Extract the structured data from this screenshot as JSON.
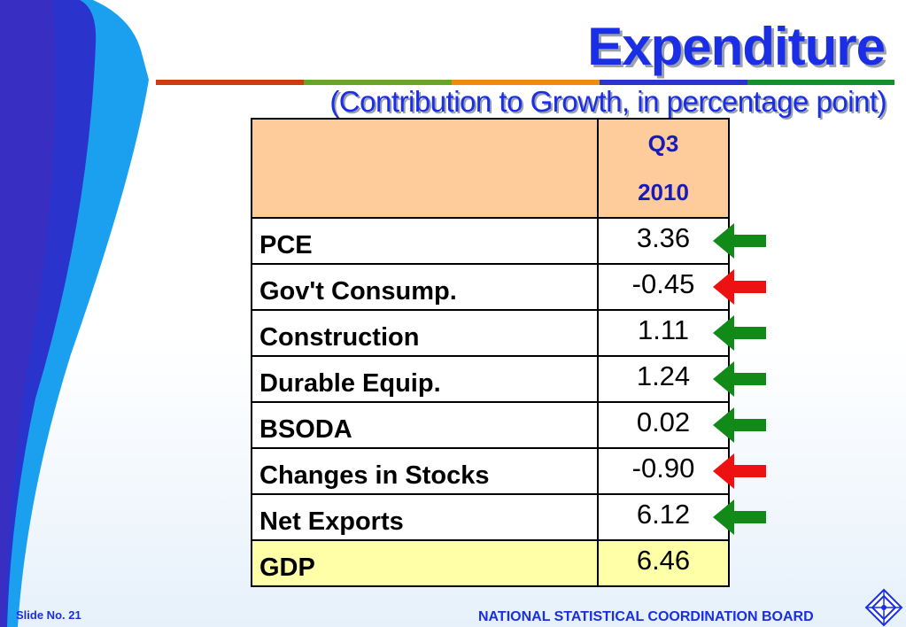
{
  "slide": {
    "title": "Expenditure",
    "subtitle": "(Contribution to Growth, in percentage point)"
  },
  "table": {
    "header": {
      "period_line1": "Q3",
      "period_line2": "2010"
    },
    "rows": [
      {
        "label": "PCE",
        "value": "3.36",
        "trend": "up"
      },
      {
        "label": "Gov't Consump.",
        "value": "-0.45",
        "trend": "down"
      },
      {
        "label": "Construction",
        "value": "1.11",
        "trend": "up"
      },
      {
        "label": "Durable Equip.",
        "value": "1.24",
        "trend": "up"
      },
      {
        "label": "BSODA",
        "value": "0.02",
        "trend": "up"
      },
      {
        "label": "Changes in Stocks",
        "value": "-0.90",
        "trend": "down"
      },
      {
        "label": "Net Exports",
        "value": "6.12",
        "trend": "up"
      },
      {
        "label": "GDP",
        "value": "6.46",
        "trend": "none"
      }
    ]
  },
  "colors": {
    "title": "#1a2ee6",
    "header_fill": "#fdcc9a",
    "gdp_fill": "#ffffa8",
    "arrow_up": "#118a18",
    "arrow_down": "#ee1111"
  },
  "footer": {
    "slide_number": "Slide No. 21",
    "organization": "NATIONAL STATISTICAL COORDINATION BOARD"
  }
}
